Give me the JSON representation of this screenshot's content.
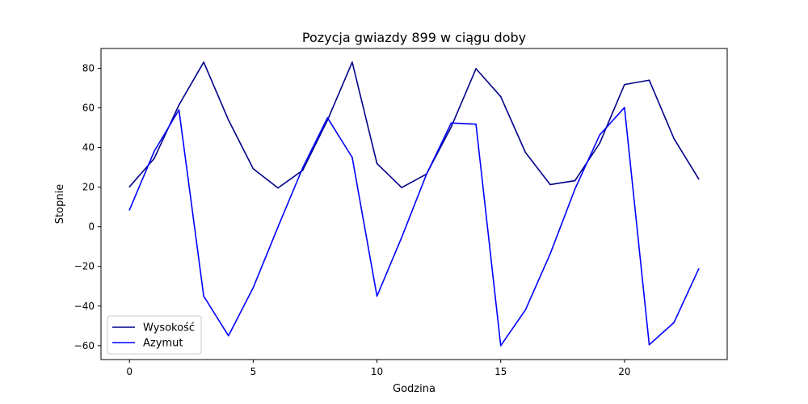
{
  "chart_data": {
    "type": "line",
    "title": "Pozycja gwiazdy 899 w ciągu doby",
    "xlabel": "Godzina",
    "ylabel": "Stopnie",
    "x": [
      0,
      1,
      2,
      3,
      4,
      5,
      6,
      7,
      8,
      9,
      10,
      11,
      12,
      13,
      14,
      15,
      16,
      17,
      18,
      19,
      20,
      21,
      22,
      23
    ],
    "xlim": [
      -1.15,
      24.15
    ],
    "ylim": [
      -67,
      90
    ],
    "xticks": [
      0,
      5,
      10,
      15,
      20
    ],
    "yticks": [
      -60,
      -40,
      -20,
      0,
      20,
      40,
      60,
      80
    ],
    "xtick_labels": [
      "0",
      "5",
      "10",
      "15",
      "20"
    ],
    "ytick_labels": [
      "−60",
      "−40",
      "−20",
      "0",
      "20",
      "40",
      "60",
      "80"
    ],
    "grid": false,
    "legend_position": "lower-left",
    "series": [
      {
        "name": "Wysokość",
        "color": "#00008b",
        "values": [
          20.2,
          34.5,
          61.5,
          83.1,
          53.9,
          29.3,
          19.6,
          28.5,
          53.8,
          83.1,
          31.9,
          19.8,
          26.6,
          50.4,
          79.8,
          65.7,
          37.5,
          21.3,
          23.3,
          42.2,
          71.8,
          74.0,
          44.5,
          24.1
        ]
      },
      {
        "name": "Azymut",
        "color": "#0000ff",
        "values": [
          8.5,
          38.1,
          59.0,
          -35.0,
          -55.0,
          -30.7,
          -0.1,
          29.8,
          55.0,
          35.0,
          -35.0,
          -5.3,
          26.5,
          52.4,
          51.8,
          -60.0,
          -41.9,
          -13.6,
          19.1,
          46.4,
          60.2,
          -59.5,
          -48.3,
          -21.2
        ]
      }
    ]
  }
}
